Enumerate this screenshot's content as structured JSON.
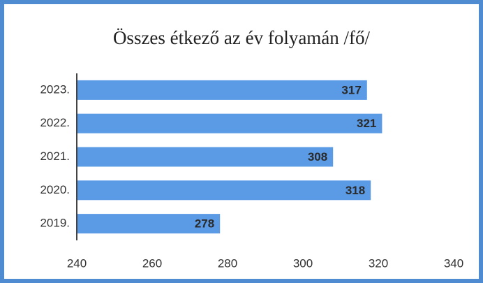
{
  "chart_data": {
    "type": "hbar",
    "title": "Összes étkező az év folyamán /fő/",
    "categories": [
      "2023.",
      "2022.",
      "2021.",
      "2020.",
      "2019."
    ],
    "values": [
      317,
      321,
      308,
      318,
      278
    ],
    "color": "#5b9be6",
    "xlim": [
      240,
      340
    ],
    "xticks": [
      240,
      260,
      280,
      300,
      320,
      340
    ]
  }
}
